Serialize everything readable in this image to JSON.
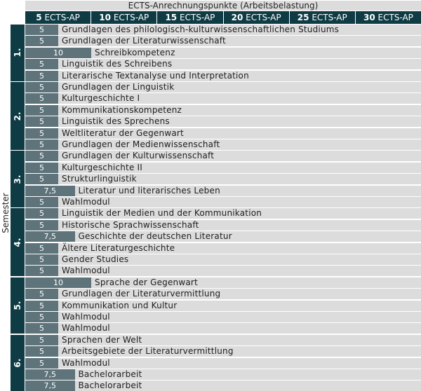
{
  "header": {
    "title": "ECTS-Anrechnungspunkte (Arbeitsbelastung)",
    "scale": [
      {
        "num": "5",
        "unit": "ECTS-AP"
      },
      {
        "num": "10",
        "unit": "ECTS-AP"
      },
      {
        "num": "15",
        "unit": "ECTS-AP"
      },
      {
        "num": "20",
        "unit": "ECTS-AP"
      },
      {
        "num": "25",
        "unit": "ECTS-AP"
      },
      {
        "num": "30",
        "unit": "ECTS-AP"
      }
    ]
  },
  "axis_label": "Semester",
  "semesters": [
    {
      "label": "1.",
      "courses": [
        {
          "ects": "5",
          "value": 5,
          "title": "Grundlagen des philologisch-kulturwissenschaftlichen Studiums"
        },
        {
          "ects": "5",
          "value": 5,
          "title": "Grundlagen der Literaturwissenschaft"
        },
        {
          "ects": "10",
          "value": 10,
          "title": "Schreibkompetenz"
        },
        {
          "ects": "5",
          "value": 5,
          "title": "Linguistik des Schreibens"
        },
        {
          "ects": "5",
          "value": 5,
          "title": "Literarische Textanalyse und Interpretation"
        }
      ]
    },
    {
      "label": "2.",
      "courses": [
        {
          "ects": "5",
          "value": 5,
          "title": "Grundlagen der Linguistik"
        },
        {
          "ects": "5",
          "value": 5,
          "title": "Kulturgeschichte I"
        },
        {
          "ects": "5",
          "value": 5,
          "title": "Kommunikationskompetenz"
        },
        {
          "ects": "5",
          "value": 5,
          "title": "Linguistik des Sprechens"
        },
        {
          "ects": "5",
          "value": 5,
          "title": "Weltliteratur der Gegenwart"
        },
        {
          "ects": "5",
          "value": 5,
          "title": "Grundlagen der Medienwissenschaft"
        }
      ]
    },
    {
      "label": "3.",
      "courses": [
        {
          "ects": "5",
          "value": 5,
          "title": "Grundlagen der Kulturwissenschaft"
        },
        {
          "ects": "5",
          "value": 5,
          "title": "Kulturgeschichte II"
        },
        {
          "ects": "5",
          "value": 5,
          "title": "Strukturlinguistik"
        },
        {
          "ects": "7,5",
          "value": 7.5,
          "title": "Literatur und literarisches Leben"
        },
        {
          "ects": "5",
          "value": 5,
          "title": "Wahlmodul"
        }
      ]
    },
    {
      "label": "4.",
      "courses": [
        {
          "ects": "5",
          "value": 5,
          "title": "Linguistik der Medien und der Kommunikation"
        },
        {
          "ects": "5",
          "value": 5,
          "title": "Historische Sprachwissenschaft"
        },
        {
          "ects": "7,5",
          "value": 7.5,
          "title": "Geschichte der deutschen Literatur"
        },
        {
          "ects": "5",
          "value": 5,
          "title": "Ältere Literaturgeschichte"
        },
        {
          "ects": "5",
          "value": 5,
          "title": "Gender Studies"
        },
        {
          "ects": "5",
          "value": 5,
          "title": "Wahlmodul"
        }
      ]
    },
    {
      "label": "5.",
      "courses": [
        {
          "ects": "10",
          "value": 10,
          "title": "Sprache der Gegenwart"
        },
        {
          "ects": "5",
          "value": 5,
          "title": "Grundlagen der Literaturvermittlung"
        },
        {
          "ects": "5",
          "value": 5,
          "title": "Kommunikation und Kultur"
        },
        {
          "ects": "5",
          "value": 5,
          "title": "Wahlmodul"
        },
        {
          "ects": "5",
          "value": 5,
          "title": "Wahlmodul"
        }
      ]
    },
    {
      "label": "6.",
      "courses": [
        {
          "ects": "5",
          "value": 5,
          "title": "Sprachen der Welt"
        },
        {
          "ects": "5",
          "value": 5,
          "title": "Arbeitsgebiete der Literaturvermittlung"
        },
        {
          "ects": "5",
          "value": 5,
          "title": "Wahlmodul"
        },
        {
          "ects": "7,5",
          "value": 7.5,
          "title": "Bachelorarbeit"
        },
        {
          "ects": "7,5",
          "value": 7.5,
          "title": "Bachelorarbeit"
        }
      ]
    }
  ]
}
